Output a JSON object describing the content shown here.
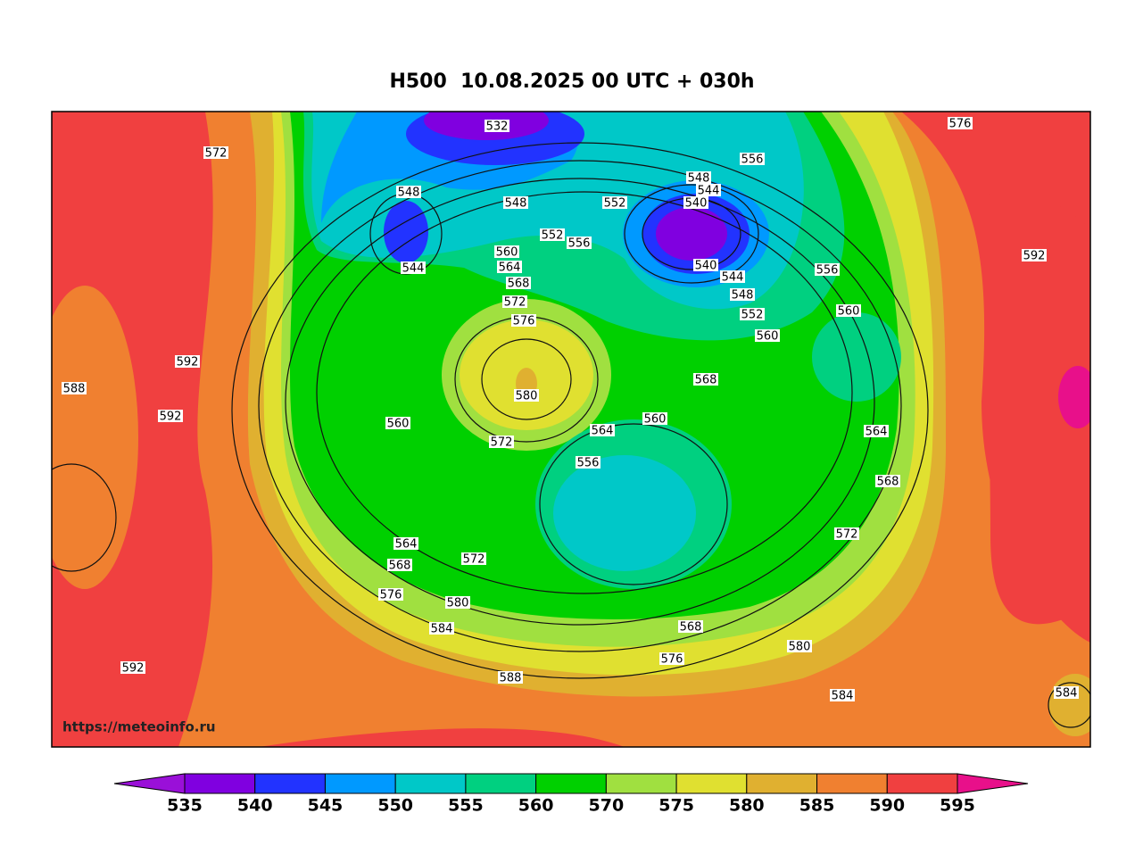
{
  "title": "H500  10.08.2025 00 UTC + 030h",
  "watermark": "https://meteoinfo.ru",
  "contour_labels": [
    532,
    572,
    548,
    548,
    552,
    548,
    544,
    540,
    556,
    576,
    552,
    556,
    544,
    560,
    564,
    568,
    572,
    576,
    540,
    544,
    548,
    552,
    560,
    556,
    560,
    592,
    592,
    588,
    592,
    580,
    560,
    568,
    560,
    564,
    572,
    556,
    564,
    568,
    572,
    564,
    568,
    572,
    576,
    580,
    584,
    568,
    576,
    580,
    588,
    592,
    584,
    584
  ],
  "colorbar": {
    "labels": [
      535,
      540,
      545,
      550,
      555,
      560,
      570,
      575,
      580,
      585,
      590,
      595
    ],
    "colors": [
      "#9a10d8",
      "#8000e0",
      "#2233ff",
      "#0099ff",
      "#00c8c8",
      "#00d080",
      "#00d000",
      "#a0e040",
      "#e0e030",
      "#e0b030",
      "#f08030",
      "#f04040",
      "#e8108a"
    ]
  }
}
